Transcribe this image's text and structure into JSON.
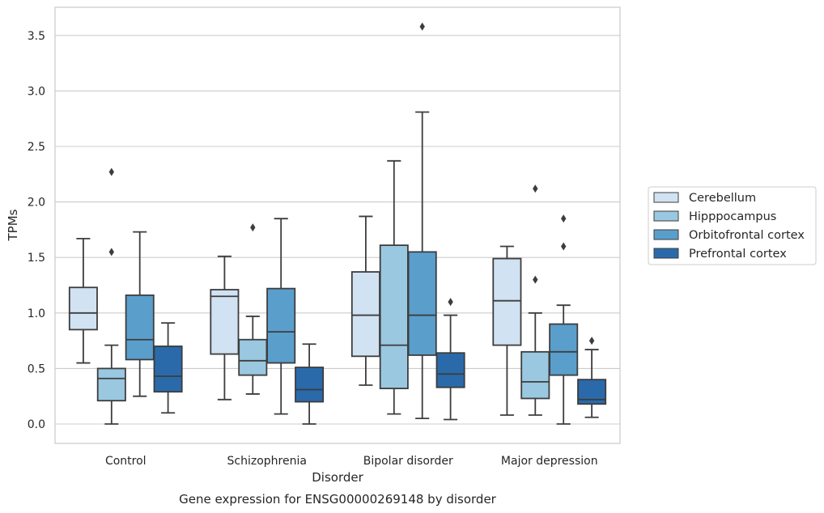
{
  "chart_data": {
    "type": "box",
    "caption": "Gene expression for ENSG00000269148 by disorder",
    "xlabel": "Disorder",
    "ylabel": "TPMs",
    "ylim": [
      -0.17,
      3.76
    ],
    "yticks": [
      "0.0",
      "0.5",
      "1.0",
      "1.5",
      "2.0",
      "2.5",
      "3.0",
      "3.5"
    ],
    "grid": "horizontal",
    "legend_position": "right",
    "categories": [
      "Control",
      "Schizophrenia",
      "Bipolar disorder",
      "Major depression"
    ],
    "series": [
      {
        "name": "Cerebellum",
        "color": "#d1e2f2",
        "boxes": [
          {
            "whislo": 0.55,
            "q1": 0.85,
            "med": 1.0,
            "q3": 1.23,
            "whishi": 1.67,
            "fliers": []
          },
          {
            "whislo": 0.22,
            "q1": 0.63,
            "med": 1.15,
            "q3": 1.21,
            "whishi": 1.51,
            "fliers": []
          },
          {
            "whislo": 0.35,
            "q1": 0.61,
            "med": 0.98,
            "q3": 1.37,
            "whishi": 1.87,
            "fliers": []
          },
          {
            "whislo": 0.08,
            "q1": 0.71,
            "med": 1.11,
            "q3": 1.49,
            "whishi": 1.6,
            "fliers": []
          }
        ]
      },
      {
        "name": "Hipppocampus",
        "color": "#9ac8e0",
        "boxes": [
          {
            "whislo": 0.0,
            "q1": 0.21,
            "med": 0.41,
            "q3": 0.5,
            "whishi": 0.71,
            "fliers": [
              1.55,
              2.27
            ]
          },
          {
            "whislo": 0.27,
            "q1": 0.44,
            "med": 0.57,
            "q3": 0.76,
            "whishi": 0.97,
            "fliers": [
              1.77
            ]
          },
          {
            "whislo": 0.09,
            "q1": 0.32,
            "med": 0.71,
            "q3": 1.61,
            "whishi": 2.37,
            "fliers": []
          },
          {
            "whislo": 0.08,
            "q1": 0.23,
            "med": 0.38,
            "q3": 0.65,
            "whishi": 1.0,
            "fliers": [
              1.3,
              2.12
            ]
          }
        ]
      },
      {
        "name": "Orbitofrontal cortex",
        "color": "#5a9ecc",
        "boxes": [
          {
            "whislo": 0.25,
            "q1": 0.58,
            "med": 0.76,
            "q3": 1.16,
            "whishi": 1.73,
            "fliers": []
          },
          {
            "whislo": 0.09,
            "q1": 0.55,
            "med": 0.83,
            "q3": 1.22,
            "whishi": 1.85,
            "fliers": []
          },
          {
            "whislo": 0.05,
            "q1": 0.62,
            "med": 0.98,
            "q3": 1.55,
            "whishi": 2.81,
            "fliers": [
              3.58
            ]
          },
          {
            "whislo": 0.0,
            "q1": 0.44,
            "med": 0.65,
            "q3": 0.9,
            "whishi": 1.07,
            "fliers": [
              1.6,
              1.85
            ]
          }
        ]
      },
      {
        "name": "Prefrontal cortex",
        "color": "#2a6aaa",
        "boxes": [
          {
            "whislo": 0.1,
            "q1": 0.29,
            "med": 0.43,
            "q3": 0.7,
            "whishi": 0.91,
            "fliers": []
          },
          {
            "whislo": 0.0,
            "q1": 0.2,
            "med": 0.31,
            "q3": 0.51,
            "whishi": 0.72,
            "fliers": []
          },
          {
            "whislo": 0.04,
            "q1": 0.33,
            "med": 0.45,
            "q3": 0.64,
            "whishi": 0.98,
            "fliers": [
              1.1
            ]
          },
          {
            "whislo": 0.06,
            "q1": 0.18,
            "med": 0.22,
            "q3": 0.4,
            "whishi": 0.67,
            "fliers": [
              0.75
            ]
          }
        ]
      }
    ]
  }
}
